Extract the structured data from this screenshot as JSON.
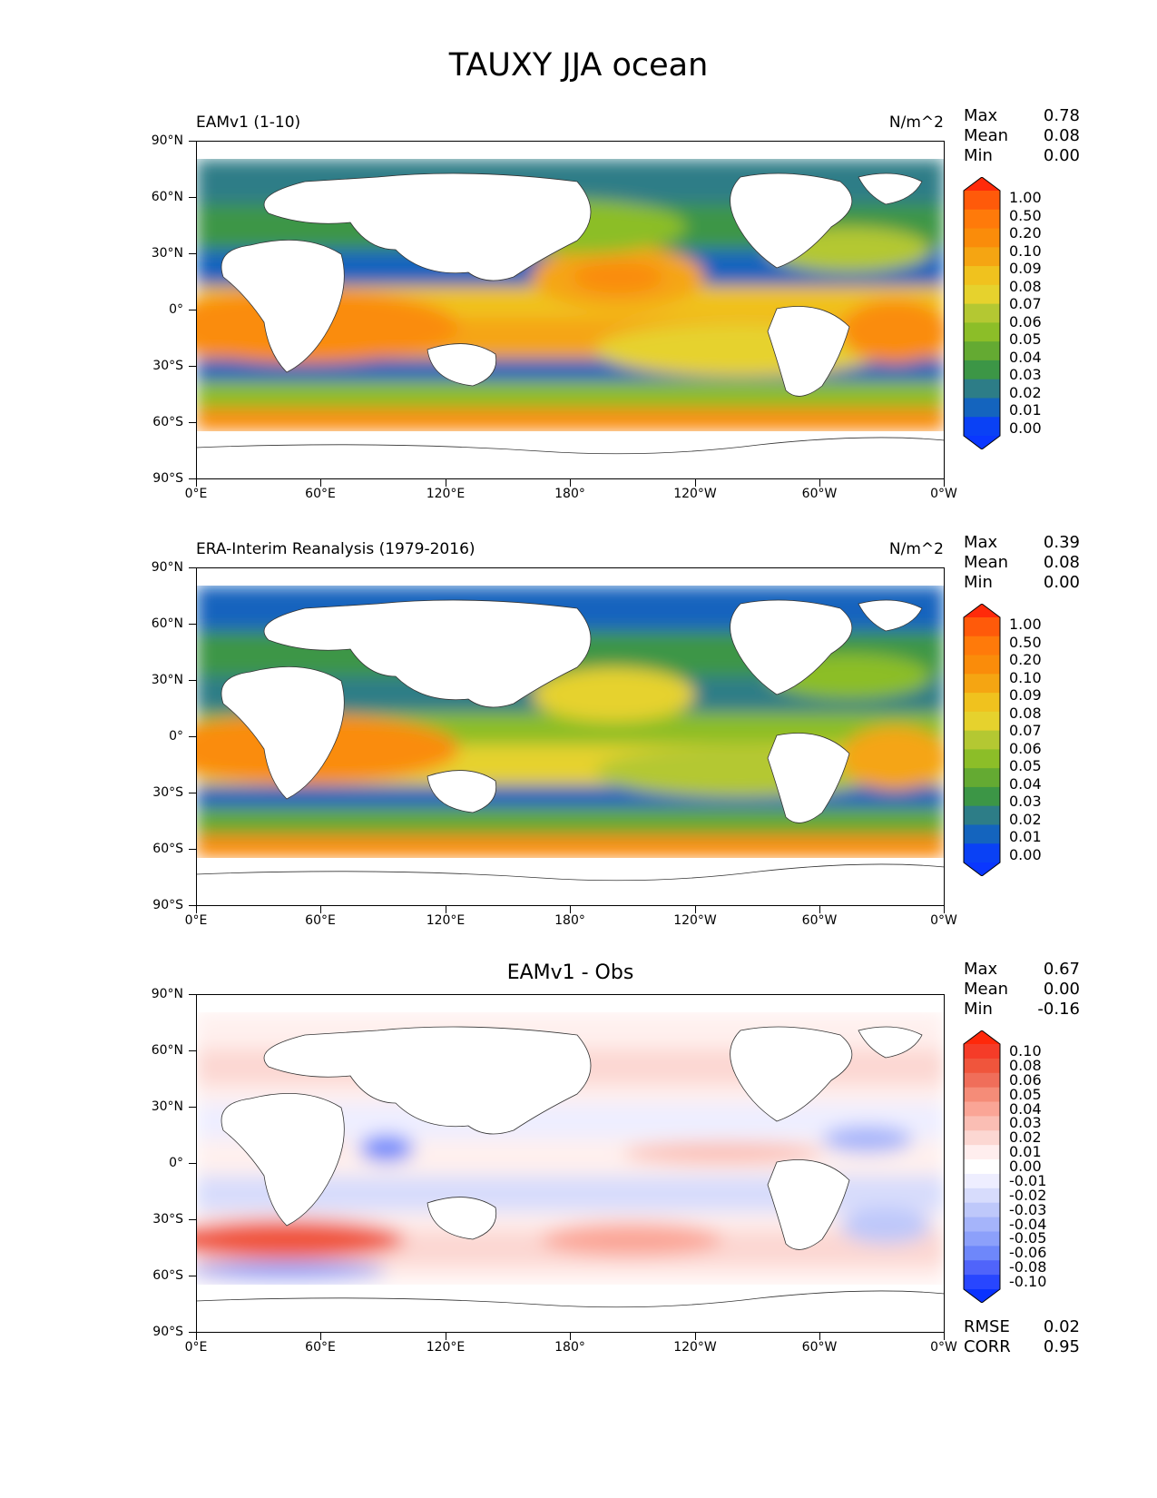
{
  "figure": {
    "title": "TAUXY JJA ocean"
  },
  "axes": {
    "lat_labels": [
      "90°N",
      "60°N",
      "30°N",
      "0°",
      "30°S",
      "60°S",
      "90°S"
    ],
    "lon_labels": [
      "0°E",
      "60°E",
      "120°E",
      "180°",
      "120°W",
      "60°W",
      "0°W"
    ]
  },
  "colorbars": {
    "field": {
      "labels": [
        "1.00",
        "0.50",
        "0.20",
        "0.10",
        "0.09",
        "0.08",
        "0.07",
        "0.06",
        "0.05",
        "0.04",
        "0.03",
        "0.02",
        "0.01",
        "0.00"
      ],
      "colors": [
        "#ff2a0a",
        "#ff5a0a",
        "#ff7a0a",
        "#fa8c0a",
        "#f5a512",
        "#f0c21e",
        "#e6d22d",
        "#b4c832",
        "#8cbe28",
        "#64aa32",
        "#3c9646",
        "#2d7d87",
        "#1464be",
        "#0a41f5",
        "#0a37ff"
      ]
    },
    "diff": {
      "labels": [
        "0.10",
        "0.08",
        "0.06",
        "0.05",
        "0.04",
        "0.03",
        "0.02",
        "0.01",
        "0.00",
        "-0.01",
        "-0.02",
        "-0.03",
        "-0.04",
        "-0.05",
        "-0.06",
        "-0.08",
        "-0.10"
      ],
      "colors": [
        "#ff280a",
        "#f53c28",
        "#f0553c",
        "#f06e5a",
        "#f58c78",
        "#faa596",
        "#fabeb4",
        "#fcd7d2",
        "#ffeeee",
        "#ffffff",
        "#eeeeff",
        "#d7dcfc",
        "#bec8fa",
        "#a5b4fa",
        "#8ca0fa",
        "#6e87fa",
        "#5064fa",
        "#2846ff",
        "#0a32ff"
      ]
    }
  },
  "panels": [
    {
      "title_left": "EAMv1 (1-10)",
      "title_right": "N/m^2",
      "stats": {
        "max_label": "Max",
        "max": "0.78",
        "mean_label": "Mean",
        "mean": "0.08",
        "min_label": "Min",
        "min": "0.00"
      }
    },
    {
      "title_left": "ERA-Interim Reanalysis (1979-2016)",
      "title_right": "N/m^2",
      "stats": {
        "max_label": "Max",
        "max": "0.39",
        "mean_label": "Mean",
        "mean": "0.08",
        "min_label": "Min",
        "min": "0.00"
      }
    },
    {
      "title_center": "EAMv1 - Obs",
      "stats": {
        "max_label": "Max",
        "max": "0.67",
        "mean_label": "Mean",
        "mean": "0.00",
        "min_label": "Min",
        "min": "-0.16"
      },
      "metrics": {
        "rmse_label": "RMSE",
        "rmse": "0.02",
        "corr_label": "CORR",
        "corr": "0.95"
      }
    }
  ]
}
